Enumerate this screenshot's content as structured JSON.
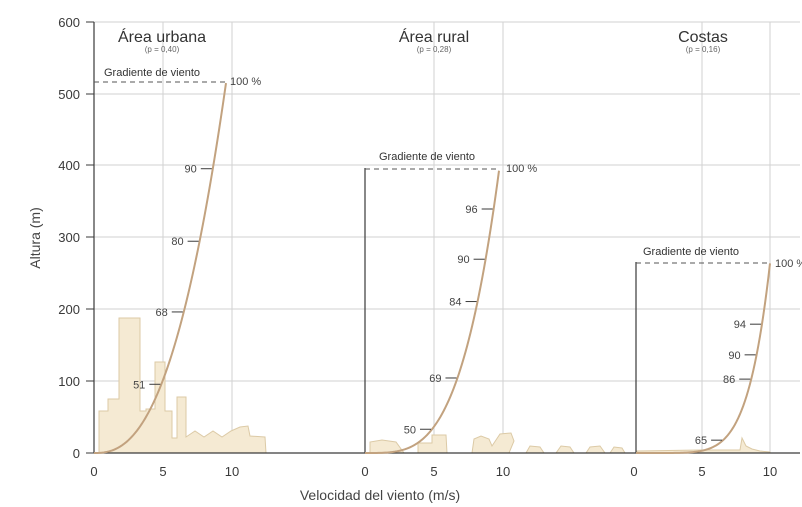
{
  "axes": {
    "y_title": "Altura (m)",
    "x_title": "Velocidad del viento (m/s)",
    "y_ticks": [
      0,
      100,
      200,
      300,
      400,
      500,
      600
    ],
    "x_ticks": [
      0,
      5,
      10
    ]
  },
  "gradient_label": "Gradiente de viento",
  "panels": [
    {
      "id": "urbana",
      "title": "Área urbana",
      "exponent_label": "(p = 0,40)",
      "p": 0.4,
      "gradient_height": 515,
      "gradient_pct_label": "100 %",
      "markers": [
        {
          "pct": 90,
          "label": "90"
        },
        {
          "pct": 80,
          "label": "80"
        },
        {
          "pct": 68,
          "label": "68"
        },
        {
          "pct": 51,
          "label": "51"
        }
      ]
    },
    {
      "id": "rural",
      "title": "Área rural",
      "exponent_label": "(p = 0,28)",
      "p": 0.28,
      "gradient_height": 393,
      "gradient_pct_label": "100 %",
      "markers": [
        {
          "pct": 96,
          "label": "96"
        },
        {
          "pct": 90,
          "label": "90"
        },
        {
          "pct": 84,
          "label": "84"
        },
        {
          "pct": 69,
          "label": "69"
        },
        {
          "pct": 50,
          "label": "50"
        }
      ]
    },
    {
      "id": "costas",
      "title": "Costas",
      "exponent_label": "(p = 0,16)",
      "p": 0.16,
      "gradient_height": 264,
      "gradient_pct_label": "100 %",
      "markers": [
        {
          "pct": 94,
          "label": "94"
        },
        {
          "pct": 90,
          "label": "90"
        },
        {
          "pct": 86,
          "label": "86"
        },
        {
          "pct": 65,
          "label": "65"
        }
      ]
    }
  ],
  "colors": {
    "profile": "#c2a27f",
    "buildings_fill": "#f5ead3",
    "buildings_stroke": "#dccaa6",
    "grid": "#d2d2d2",
    "axis": "#3a3a3a"
  }
}
